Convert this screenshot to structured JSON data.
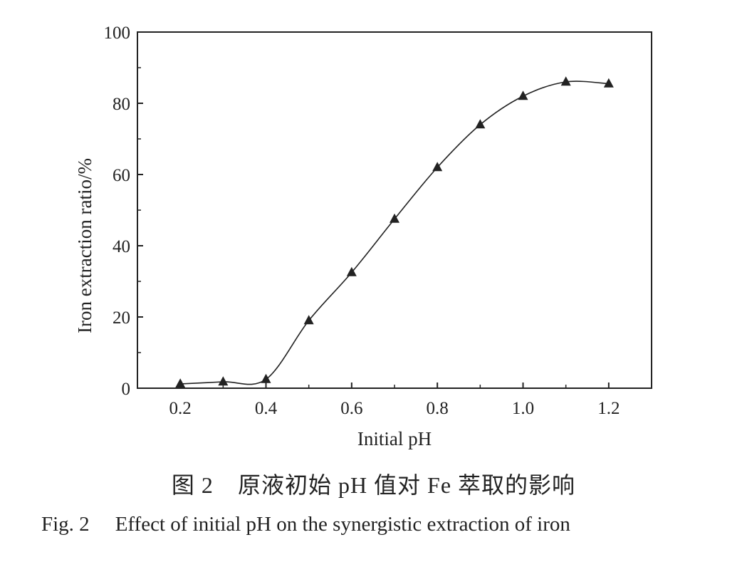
{
  "chart_data": {
    "type": "line",
    "xlabel": "Initial pH",
    "ylabel": "Iron extraction ratio/%",
    "xlim": [
      0.1,
      1.3
    ],
    "ylim": [
      0,
      100
    ],
    "x_ticks": [
      0.2,
      0.4,
      0.6,
      0.8,
      1.0,
      1.2
    ],
    "x_tick_labels": [
      "0.2",
      "0.4",
      "0.6",
      "0.8",
      "1.0",
      "1.2"
    ],
    "y_ticks": [
      0,
      20,
      40,
      60,
      80,
      100
    ],
    "y_tick_labels": [
      "0",
      "20",
      "40",
      "60",
      "80",
      "100"
    ],
    "marker": "triangle",
    "color": "#222222",
    "grid": false,
    "series": [
      {
        "x": [
          0.2,
          0.3,
          0.4,
          0.5,
          0.6,
          0.7,
          0.8,
          0.9,
          1.0,
          1.1,
          1.2
        ],
        "y": [
          1.2,
          1.8,
          2.5,
          19.0,
          32.5,
          47.5,
          62.0,
          74.0,
          82.0,
          86.0,
          85.5
        ]
      }
    ]
  },
  "captions": {
    "cn_fig": "图 2",
    "cn_text": "原液初始 pH 值对 Fe 萃取的影响",
    "en_fig": "Fig. 2",
    "en_text": "Effect of initial pH on the synergistic extraction of iron"
  }
}
